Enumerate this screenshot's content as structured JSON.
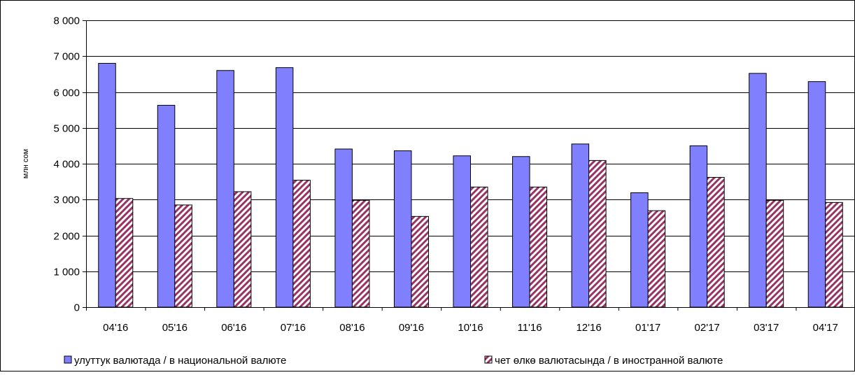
{
  "chart_data": {
    "type": "bar",
    "title": "",
    "xlabel": "",
    "ylabel": "млн сом",
    "ylim": [
      0,
      8000
    ],
    "yticks": [
      0,
      1000,
      2000,
      3000,
      4000,
      5000,
      6000,
      7000,
      8000
    ],
    "ytick_labels": [
      "0",
      "1 000",
      "2 000",
      "3 000",
      "4 000",
      "5 000",
      "6 000",
      "7 000",
      "8 000"
    ],
    "grid": "horizontal",
    "legend_position": "bottom",
    "categories": [
      "04'16",
      "05'16",
      "06'16",
      "07'16",
      "08'16",
      "09'16",
      "10'16",
      "11'16",
      "12'16",
      "01'17",
      "02'17",
      "03'17",
      "04'17"
    ],
    "series": [
      {
        "name": "улуттук валютада / в национальной валюте",
        "color": "#8080ff",
        "pattern": "solid",
        "values": [
          6800,
          5630,
          6600,
          6680,
          4410,
          4360,
          4220,
          4200,
          4550,
          3190,
          4500,
          6520,
          6290
        ]
      },
      {
        "name": "чет өлкө валютасында / в иностранной валюте",
        "color": "#993366",
        "pattern": "diagonal-stripes",
        "values": [
          3030,
          2850,
          3220,
          3540,
          2980,
          2530,
          3350,
          3350,
          4090,
          2690,
          3620,
          2980,
          2920
        ]
      }
    ]
  }
}
